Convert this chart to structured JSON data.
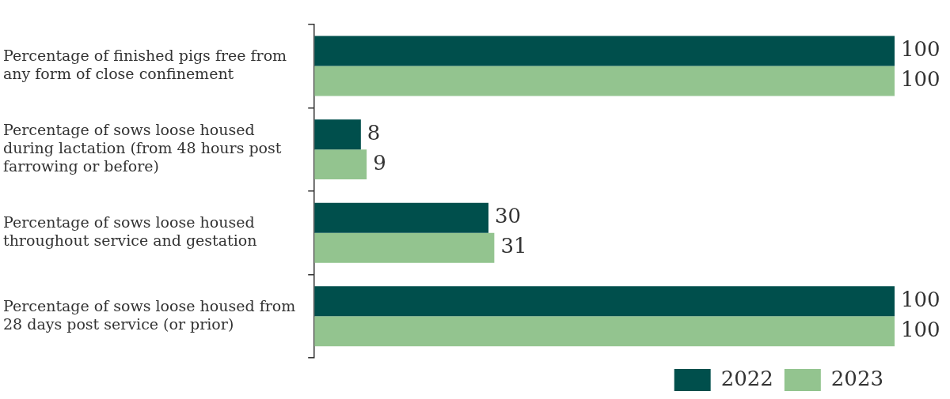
{
  "chart_data": {
    "type": "bar",
    "orientation": "horizontal",
    "categories": [
      "Percentage of finished pigs free from any form of close confinement",
      "Percentage of sows loose housed during lactation (from 48 hours post farrowing or before)",
      "Percentage of sows loose housed throughout service and gestation",
      "Percentage of sows loose housed from 28 days post service (or prior)"
    ],
    "series": [
      {
        "name": "2022",
        "color": "#004f4c",
        "values": [
          100,
          8,
          30,
          100
        ]
      },
      {
        "name": "2023",
        "color": "#93c48f",
        "values": [
          100,
          9,
          31,
          100
        ]
      }
    ],
    "data_labels": true,
    "legend": "bottom right",
    "grid": false,
    "tick_labels": "y"
  }
}
